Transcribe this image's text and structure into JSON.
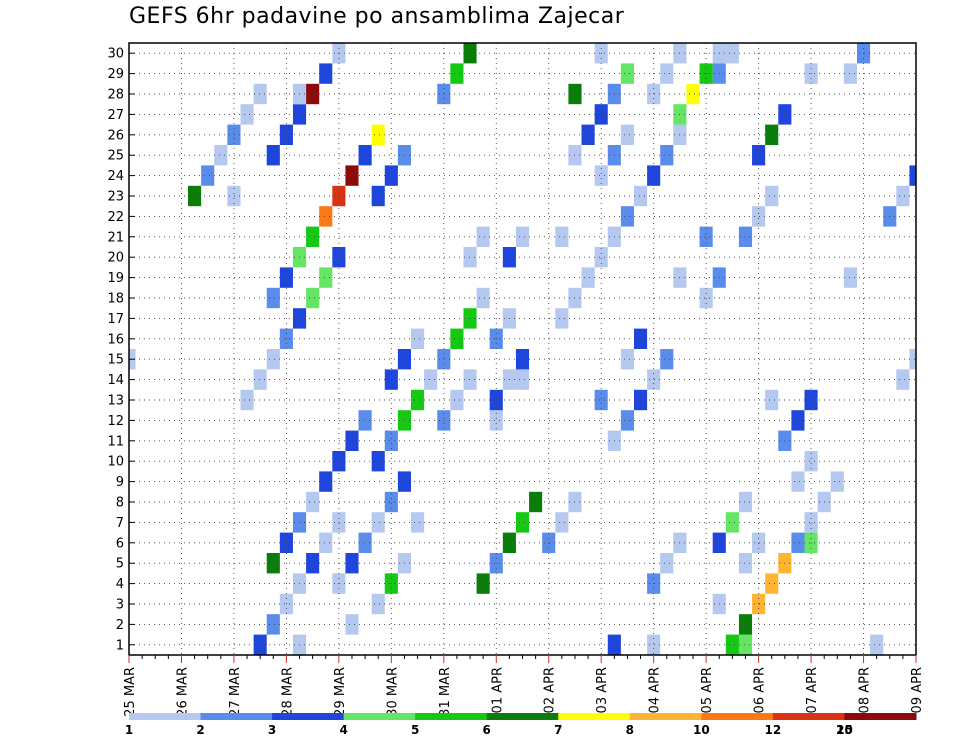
{
  "title": "GEFS 6hr padavine po ansamblima Zajecar",
  "chart_data": {
    "type": "heatmap",
    "title": "GEFS 6hr padavine po ansamblima Zajecar",
    "x_labels": [
      "25 MAR",
      "26 MAR",
      "27 MAR",
      "28 MAR",
      "29 MAR",
      "30 MAR",
      "31 MAR",
      "01 APR",
      "02 APR",
      "03 APR",
      "04 APR",
      "05 APR",
      "06 APR",
      "07 APR",
      "08 APR",
      "09 APR"
    ],
    "y_labels": [
      "1",
      "2",
      "3",
      "4",
      "5",
      "6",
      "7",
      "8",
      "9",
      "10",
      "11",
      "12",
      "13",
      "14",
      "15",
      "16",
      "17",
      "18",
      "19",
      "20",
      "21",
      "22",
      "23",
      "24",
      "25",
      "26",
      "27",
      "28",
      "29",
      "30"
    ],
    "steps_per_day": 4,
    "n_steps": 61,
    "legend": {
      "colors": [
        "#b4c8f0",
        "#5a8cec",
        "#1e46dc",
        "#64e664",
        "#14c814",
        "#0a7d0a",
        "#ffff00",
        "#ffb432",
        "#ff7814",
        "#dc3214",
        "#8c0a0a"
      ],
      "labels": [
        "1",
        "2",
        "3",
        "4",
        "5",
        "6",
        "7",
        "8",
        "10",
        "12",
        "15",
        "20"
      ]
    },
    "cells": [
      [
        0,
        1,
        9,
        0
      ],
      [
        0,
        1,
        10,
        0
      ],
      [
        0,
        1,
        11,
        0
      ],
      [
        0,
        1,
        12,
        1
      ],
      [
        0,
        1,
        13,
        2
      ],
      [
        0,
        1,
        14,
        3
      ],
      [
        0,
        1,
        15,
        3
      ],
      [
        0,
        1,
        16,
        2
      ],
      [
        0,
        1,
        19,
        2
      ],
      [
        0,
        1,
        20,
        2
      ],
      [
        0,
        1,
        21,
        1
      ],
      [
        0,
        1,
        24,
        1
      ],
      [
        0,
        1,
        25,
        4
      ],
      [
        0,
        1,
        26,
        5
      ],
      [
        0,
        1,
        32,
        1
      ],
      [
        0,
        1,
        33,
        0
      ],
      [
        0,
        1,
        34,
        0
      ],
      [
        0,
        1,
        37,
        0
      ],
      [
        0,
        1,
        38,
        1
      ],
      [
        0,
        1,
        39,
        2
      ],
      [
        0,
        1,
        40,
        0
      ],
      [
        0,
        1,
        41,
        1
      ],
      [
        0,
        1,
        44,
        0
      ],
      [
        0,
        1,
        45,
        1
      ],
      [
        0,
        1,
        47,
        1
      ],
      [
        0,
        1,
        48,
        0
      ],
      [
        0,
        1,
        49,
        0
      ],
      [
        0,
        1,
        55,
        0
      ],
      [
        0,
        1,
        56,
        1
      ],
      [
        0,
        1,
        57,
        0
      ],
      [
        0,
        2,
        11,
        1
      ],
      [
        0,
        2,
        12,
        2
      ],
      [
        0,
        2,
        13,
        3
      ],
      [
        0,
        2,
        14,
        4
      ],
      [
        0,
        2,
        15,
        8
      ],
      [
        0,
        2,
        16,
        9
      ],
      [
        0,
        2,
        17,
        10
      ],
      [
        0,
        2,
        18,
        2
      ],
      [
        0,
        2,
        19,
        6
      ],
      [
        0,
        2,
        27,
        5
      ],
      [
        0,
        2,
        28,
        1
      ],
      [
        0,
        2,
        29,
        5
      ],
      [
        0,
        2,
        30,
        4
      ],
      [
        0,
        2,
        31,
        5
      ],
      [
        0,
        2,
        36,
        1
      ],
      [
        0,
        2,
        38,
        0
      ],
      [
        0,
        2,
        39,
        2
      ],
      [
        0,
        2,
        42,
        0
      ],
      [
        0,
        2,
        44,
        1
      ],
      [
        0,
        2,
        48,
        2
      ],
      [
        0,
        2,
        49,
        5
      ],
      [
        0,
        2,
        50,
        2
      ],
      [
        0,
        2,
        52,
        0
      ],
      [
        1,
        2,
        11,
        2
      ],
      [
        1,
        2,
        12,
        2
      ],
      [
        1,
        2,
        13,
        2
      ],
      [
        1,
        2,
        14,
        10
      ],
      [
        1,
        2,
        15,
        2
      ],
      [
        1,
        2,
        16,
        0
      ],
      [
        1,
        2,
        19,
        0
      ],
      [
        1,
        2,
        20,
        4
      ],
      [
        1,
        2,
        21,
        0
      ],
      [
        1,
        2,
        28,
        0
      ],
      [
        1,
        2,
        30,
        0
      ],
      [
        1,
        2,
        33,
        0
      ],
      [
        1,
        2,
        34,
        0
      ],
      [
        1,
        2,
        35,
        0
      ],
      [
        1,
        2,
        36,
        0
      ],
      [
        1,
        2,
        37,
        0
      ],
      [
        1,
        2,
        38,
        1
      ],
      [
        1,
        2,
        39,
        0
      ],
      [
        1,
        2,
        40,
        2
      ],
      [
        1,
        2,
        41,
        1
      ],
      [
        1,
        2,
        42,
        0
      ],
      [
        1,
        2,
        45,
        1
      ],
      [
        1,
        2,
        46,
        0
      ],
      [
        1,
        2,
        47,
        3
      ],
      [
        1,
        2,
        52,
        3
      ],
      [
        2,
        0,
        0,
        0
      ],
      [
        2,
        0,
        8,
        0
      ],
      [
        2,
        0,
        13,
        0
      ],
      [
        2,
        0,
        17,
        0
      ],
      [
        2,
        0,
        22,
        0
      ],
      [
        2,
        0,
        28,
        2
      ],
      [
        2,
        0,
        29,
        0
      ],
      [
        2,
        0,
        30,
        2
      ],
      [
        2,
        0,
        42,
        3
      ],
      [
        2,
        0,
        43,
        6
      ],
      [
        2,
        0,
        44,
        4
      ],
      [
        2,
        0,
        45,
        0
      ],
      [
        2,
        0,
        46,
        4
      ],
      [
        2,
        0,
        47,
        5
      ],
      [
        2,
        0,
        48,
        7
      ],
      [
        2,
        0,
        49,
        7
      ],
      [
        2,
        0,
        50,
        7
      ],
      [
        2,
        0,
        51,
        1
      ],
      [
        2,
        0,
        52,
        0
      ],
      [
        2,
        0,
        53,
        0
      ],
      [
        2,
        0,
        54,
        0
      ],
      [
        2,
        0,
        59,
        0
      ],
      [
        2,
        0,
        60,
        0
      ],
      [
        2,
        1,
        5,
        5
      ],
      [
        2,
        1,
        6,
        1
      ],
      [
        2,
        1,
        7,
        0
      ],
      [
        2,
        1,
        8,
        1
      ],
      [
        2,
        1,
        9,
        0
      ],
      [
        2,
        1,
        10,
        0
      ],
      [
        2,
        1,
        13,
        0
      ],
      [
        2,
        1,
        16,
        0
      ],
      [
        2,
        1,
        17,
        2
      ],
      [
        2,
        1,
        18,
        1
      ],
      [
        2,
        1,
        19,
        0
      ],
      [
        2,
        1,
        20,
        1
      ],
      [
        2,
        1,
        21,
        2
      ],
      [
        2,
        1,
        24,
        1
      ],
      [
        2,
        1,
        25,
        0
      ],
      [
        2,
        1,
        26,
        0
      ],
      [
        2,
        1,
        28,
        1
      ],
      [
        2,
        1,
        29,
        0
      ],
      [
        2,
        1,
        33,
        0
      ],
      [
        2,
        1,
        36,
        0
      ],
      [
        2,
        1,
        37,
        1
      ],
      [
        2,
        1,
        38,
        0
      ],
      [
        2,
        1,
        40,
        0
      ],
      [
        2,
        1,
        41,
        0
      ],
      [
        2,
        1,
        42,
        0
      ],
      [
        2,
        1,
        45,
        0
      ],
      [
        2,
        1,
        47,
        0
      ],
      [
        2,
        1,
        48,
        0
      ],
      [
        2,
        1,
        51,
        0
      ],
      [
        2,
        1,
        52,
        0
      ],
      [
        2,
        2,
        10,
        2
      ],
      [
        2,
        2,
        11,
        1
      ],
      [
        2,
        2,
        12,
        0
      ],
      [
        2,
        2,
        13,
        0
      ],
      [
        2,
        2,
        14,
        2
      ],
      [
        2,
        2,
        15,
        0
      ],
      [
        2,
        2,
        16,
        0
      ],
      [
        2,
        2,
        19,
        2
      ],
      [
        2,
        2,
        20,
        1
      ],
      [
        2,
        2,
        21,
        4
      ],
      [
        2,
        2,
        22,
        4
      ],
      [
        2,
        2,
        23,
        0
      ],
      [
        2,
        2,
        24,
        1
      ],
      [
        2,
        2,
        25,
        4
      ],
      [
        2,
        2,
        26,
        4
      ],
      [
        2,
        2,
        27,
        0
      ],
      [
        2,
        2,
        29,
        2
      ],
      [
        2,
        2,
        30,
        0
      ],
      [
        2,
        2,
        34,
        0
      ],
      [
        2,
        2,
        35,
        2
      ],
      [
        2,
        2,
        36,
        2
      ],
      [
        2,
        2,
        37,
        1
      ],
      [
        2,
        2,
        38,
        3
      ],
      [
        2,
        2,
        40,
        0
      ],
      [
        2,
        2,
        45,
        2
      ],
      [
        2,
        2,
        46,
        3
      ],
      [
        2,
        2,
        47,
        0
      ],
      [
        2,
        2,
        50,
        1
      ],
      [
        2,
        2,
        51,
        2
      ],
      [
        2,
        2,
        52,
        2
      ],
      [
        2,
        3,
        11,
        5
      ],
      [
        2,
        3,
        12,
        2
      ],
      [
        2,
        3,
        13,
        1
      ],
      [
        2,
        3,
        14,
        0
      ],
      [
        2,
        3,
        15,
        2
      ],
      [
        2,
        3,
        16,
        2
      ],
      [
        2,
        3,
        17,
        2
      ],
      [
        2,
        3,
        18,
        1
      ],
      [
        2,
        3,
        20,
        2
      ],
      [
        2,
        3,
        21,
        2
      ],
      [
        2,
        3,
        22,
        0
      ],
      [
        2,
        3,
        26,
        0
      ],
      [
        2,
        3,
        27,
        0
      ],
      [
        2,
        3,
        34,
        5
      ],
      [
        2,
        3,
        36,
        0
      ],
      [
        2,
        3,
        37,
        2
      ],
      [
        2,
        3,
        40,
        1
      ],
      [
        2,
        3,
        41,
        0
      ],
      [
        2,
        3,
        42,
        0
      ],
      [
        2,
        3,
        49,
        0
      ],
      [
        2,
        3,
        55,
        0
      ],
      [
        2,
        3,
        58,
        1
      ],
      [
        2,
        3,
        59,
        0
      ],
      [
        2,
        3,
        60,
        2
      ]
    ]
  }
}
